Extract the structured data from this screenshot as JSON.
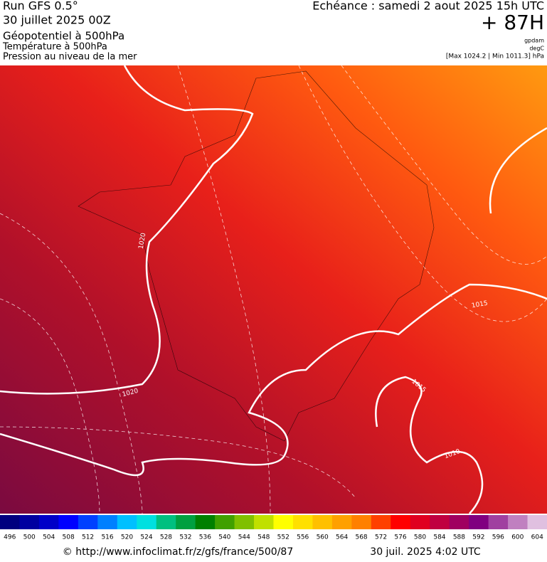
{
  "header": {
    "run": "Run GFS 0.5°",
    "run_date": "30 juillet 2025 00Z",
    "field_1": "Géopotentiel à 500hPa",
    "field_2": "Température à 500hPa",
    "field_3": "Pression au niveau de la mer",
    "valid_time": "Echéance : samedi 2 aout 2025 15h UTC",
    "lead": "+ 87H",
    "unit_1": "gpdam",
    "unit_2": "degC",
    "pressure_range": "[Max 1024.2 | Min 1011.3] hPa"
  },
  "map": {
    "contour_labels": [
      "1020",
      "1020",
      "1015",
      "1015",
      "1010"
    ]
  },
  "colorbar": {
    "ticks": [
      496,
      500,
      504,
      508,
      512,
      516,
      520,
      524,
      528,
      532,
      536,
      540,
      544,
      548,
      552,
      556,
      560,
      564,
      568,
      572,
      576,
      580,
      584,
      588,
      592,
      596,
      600,
      604
    ],
    "colors": [
      "#00007f",
      "#0000a0",
      "#0000c8",
      "#0000ff",
      "#0040ff",
      "#0080ff",
      "#00c0ff",
      "#00e0e0",
      "#00c080",
      "#00a040",
      "#008000",
      "#40a000",
      "#80c000",
      "#c0e000",
      "#ffff00",
      "#ffe000",
      "#ffc000",
      "#ffa000",
      "#ff8000",
      "#ff4000",
      "#ff0000",
      "#e00020",
      "#c00040",
      "#a00060",
      "#800080",
      "#a040a0",
      "#c080c0",
      "#e0c0e0"
    ]
  },
  "footer": {
    "source": "© http://www.infoclimat.fr/z/gfs/france/500/87",
    "generated": "30 juil. 2025  4:02 UTC"
  }
}
